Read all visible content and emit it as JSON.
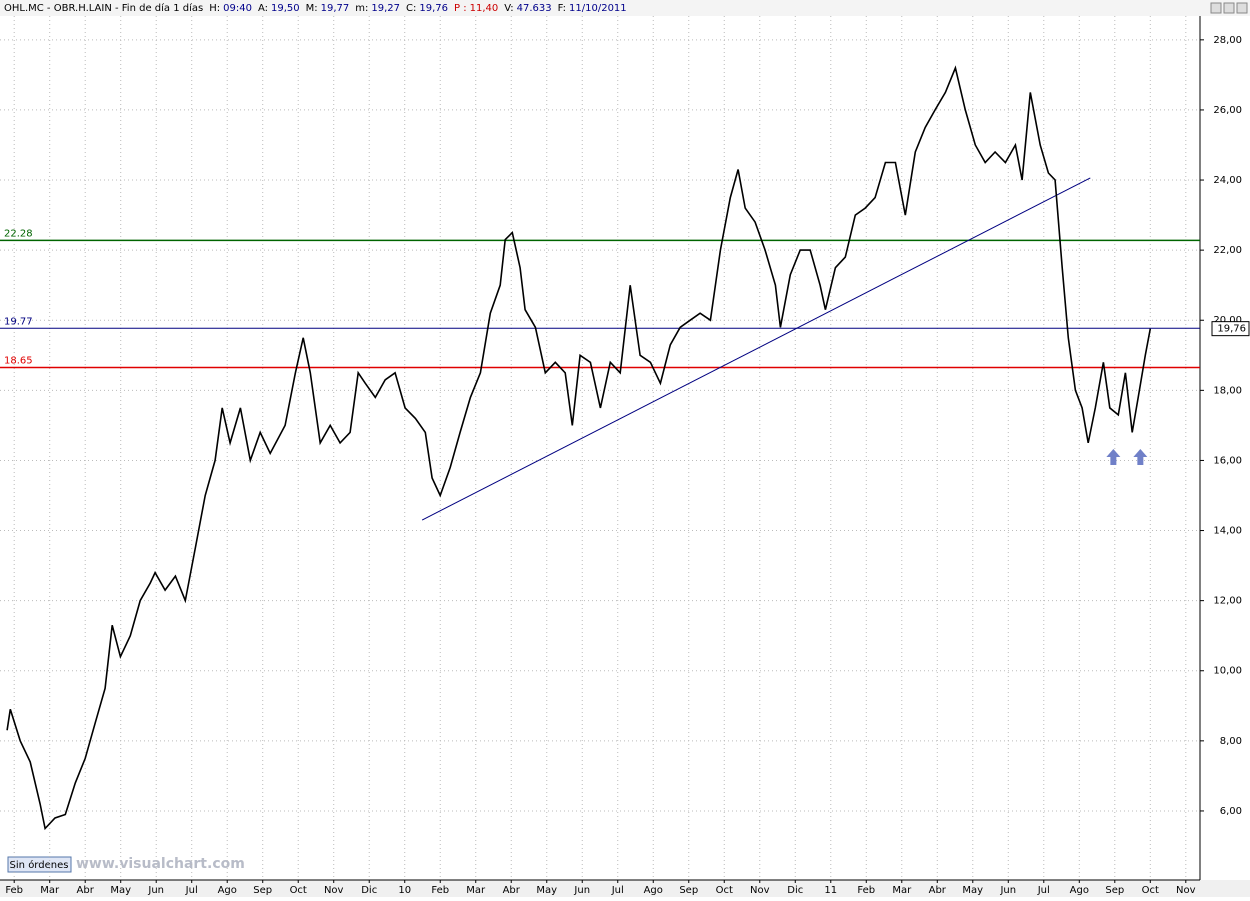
{
  "chart_data": {
    "type": "line",
    "header": [
      {
        "text": "OHL.MC - OBR.H.LAIN - Fin de día 1 días",
        "color": "#000000"
      },
      {
        "text": "H:",
        "color": "#000000"
      },
      {
        "text": "09:40",
        "color": "#00008b"
      },
      {
        "text": "A:",
        "color": "#000000"
      },
      {
        "text": "19,50",
        "color": "#00008b"
      },
      {
        "text": "M:",
        "color": "#000000"
      },
      {
        "text": "19,77",
        "color": "#00008b"
      },
      {
        "text": "m:",
        "color": "#000000"
      },
      {
        "text": "19,27",
        "color": "#00008b"
      },
      {
        "text": "C:",
        "color": "#000000"
      },
      {
        "text": "19,76",
        "color": "#00008b"
      },
      {
        "text": "P :",
        "color": "#cc0000"
      },
      {
        "text": "11,40",
        "color": "#cc0000"
      },
      {
        "text": "V:",
        "color": "#000000"
      },
      {
        "text": "47.633",
        "color": "#00008b"
      },
      {
        "text": "F:",
        "color": "#000000"
      },
      {
        "text": "11/10/2011",
        "color": "#00008b"
      }
    ],
    "button": "Sin órdenes",
    "watermark": "www.visualchart.com",
    "x": [
      -0.2,
      -0.11,
      0.17,
      0.45,
      0.73,
      0.87,
      1.15,
      1.44,
      1.72,
      2.0,
      2.28,
      2.56,
      2.76,
      2.99,
      3.27,
      3.55,
      3.83,
      3.97,
      4.25,
      4.54,
      4.82,
      5.1,
      5.38,
      5.66,
      5.86,
      6.08,
      6.37,
      6.65,
      6.93,
      7.21,
      7.63,
      7.92,
      8.14,
      8.34,
      8.62,
      8.9,
      9.18,
      9.46,
      9.69,
      9.89,
      10.17,
      10.45,
      10.73,
      11.01,
      11.3,
      11.58,
      11.77,
      12.0,
      12.28,
      12.56,
      12.85,
      13.13,
      13.41,
      13.69,
      13.83,
      14.03,
      14.25,
      14.39,
      14.68,
      14.96,
      15.24,
      15.52,
      15.72,
      15.94,
      16.23,
      16.51,
      16.79,
      17.07,
      17.35,
      17.63,
      17.92,
      18.2,
      18.48,
      18.76,
      19.04,
      19.32,
      19.61,
      19.89,
      20.17,
      20.39,
      20.59,
      20.87,
      21.15,
      21.44,
      21.58,
      21.86,
      22.14,
      22.42,
      22.7,
      22.85,
      23.13,
      23.41,
      23.69,
      23.97,
      24.25,
      24.54,
      24.82,
      25.1,
      25.38,
      25.66,
      25.94,
      26.23,
      26.51,
      26.79,
      27.07,
      27.35,
      27.63,
      27.92,
      28.2,
      28.39,
      28.62,
      28.9,
      29.13,
      29.32,
      29.52,
      29.69,
      29.89,
      30.08,
      30.25,
      30.45,
      30.68,
      30.86,
      31.1,
      31.3,
      31.49,
      31.66,
      31.86,
      32.0
    ],
    "series": [
      {
        "color": "#000000",
        "values": [
          8.3,
          8.9,
          8.0,
          7.4,
          6.2,
          5.5,
          5.8,
          5.9,
          6.8,
          7.5,
          8.5,
          9.5,
          11.3,
          10.4,
          11.0,
          12.0,
          12.5,
          12.8,
          12.3,
          12.7,
          12.0,
          13.5,
          15.0,
          16.0,
          17.5,
          16.5,
          17.5,
          16.0,
          16.8,
          16.2,
          17.0,
          18.5,
          19.5,
          18.5,
          16.5,
          17.0,
          16.5,
          16.8,
          18.5,
          18.2,
          17.8,
          18.3,
          18.5,
          17.5,
          17.2,
          16.8,
          15.5,
          15.0,
          15.8,
          16.8,
          17.8,
          18.5,
          20.2,
          21.0,
          22.3,
          22.5,
          21.5,
          20.3,
          19.8,
          18.5,
          18.8,
          18.5,
          17.0,
          19.0,
          18.8,
          17.5,
          18.8,
          18.5,
          21.0,
          19.0,
          18.8,
          18.2,
          19.3,
          19.8,
          20.0,
          20.2,
          20.0,
          22.0,
          23.5,
          24.3,
          23.2,
          22.8,
          22.0,
          21.0,
          19.8,
          21.3,
          22.0,
          22.0,
          21.0,
          20.3,
          21.5,
          21.8,
          23.0,
          23.2,
          23.5,
          24.5,
          24.5,
          23.0,
          24.8,
          25.5,
          26.0,
          26.5,
          27.2,
          26.0,
          25.0,
          24.5,
          24.8,
          24.5,
          25.0,
          24.0,
          26.5,
          25.0,
          24.2,
          24.0,
          21.5,
          19.5,
          18.0,
          17.5,
          16.5,
          17.5,
          18.8,
          17.5,
          17.3,
          18.5,
          16.8,
          17.8,
          19.0,
          19.76
        ]
      }
    ],
    "last_price": {
      "value": 19.76,
      "label": "19,76"
    },
    "hlines": [
      {
        "value": 22.28,
        "color": "#006400"
      },
      {
        "value": 19.77,
        "color": "#000080"
      },
      {
        "value": 18.65,
        "color": "#e00000"
      }
    ],
    "trendline": {
      "color": "#000080",
      "x": [
        11.49,
        30.31
      ],
      "values": [
        14.3,
        24.06
      ]
    },
    "arrows": {
      "color": "#7080c8",
      "x": [
        30.96,
        31.72
      ],
      "values": [
        16.1,
        16.1
      ]
    },
    "xlim": [
      -0.4,
      33.4
    ],
    "ylim": [
      4.03,
      28.68
    ],
    "xticks": [
      {
        "value": 0,
        "label": "Feb"
      },
      {
        "value": 1,
        "label": "Mar"
      },
      {
        "value": 2,
        "label": "Abr"
      },
      {
        "value": 3,
        "label": "May"
      },
      {
        "value": 4,
        "label": "Jun"
      },
      {
        "value": 5,
        "label": "Jul"
      },
      {
        "value": 6,
        "label": "Ago"
      },
      {
        "value": 7,
        "label": "Sep"
      },
      {
        "value": 8,
        "label": "Oct"
      },
      {
        "value": 9,
        "label": "Nov"
      },
      {
        "value": 10,
        "label": "Dic"
      },
      {
        "value": 11,
        "label": "10"
      },
      {
        "value": 12,
        "label": "Feb"
      },
      {
        "value": 13,
        "label": "Mar"
      },
      {
        "value": 14,
        "label": "Abr"
      },
      {
        "value": 15,
        "label": "May"
      },
      {
        "value": 16,
        "label": "Jun"
      },
      {
        "value": 17,
        "label": "Jul"
      },
      {
        "value": 18,
        "label": "Ago"
      },
      {
        "value": 19,
        "label": "Sep"
      },
      {
        "value": 20,
        "label": "Oct"
      },
      {
        "value": 21,
        "label": "Nov"
      },
      {
        "value": 22,
        "label": "Dic"
      },
      {
        "value": 23,
        "label": "11"
      },
      {
        "value": 24,
        "label": "Feb"
      },
      {
        "value": 25,
        "label": "Mar"
      },
      {
        "value": 26,
        "label": "Abr"
      },
      {
        "value": 27,
        "label": "May"
      },
      {
        "value": 28,
        "label": "Jun"
      },
      {
        "value": 29,
        "label": "Jul"
      },
      {
        "value": 30,
        "label": "Ago"
      },
      {
        "value": 31,
        "label": "Sep"
      },
      {
        "value": 32,
        "label": "Oct"
      },
      {
        "value": 33,
        "label": "Nov"
      }
    ],
    "yticks": [
      {
        "value": 6,
        "label": "6,00"
      },
      {
        "value": 8,
        "label": "8,00"
      },
      {
        "value": 10,
        "label": "10,00"
      },
      {
        "value": 12,
        "label": "12,00"
      },
      {
        "value": 14,
        "label": "14,00"
      },
      {
        "value": 16,
        "label": "16,00"
      },
      {
        "value": 18,
        "label": "18,00"
      },
      {
        "value": 20,
        "label": "20,00"
      },
      {
        "value": 22,
        "label": "22,00"
      },
      {
        "value": 24,
        "label": "24,00"
      },
      {
        "value": 26,
        "label": "26,00"
      },
      {
        "value": 28,
        "label": "28,00"
      }
    ],
    "grid": true
  }
}
